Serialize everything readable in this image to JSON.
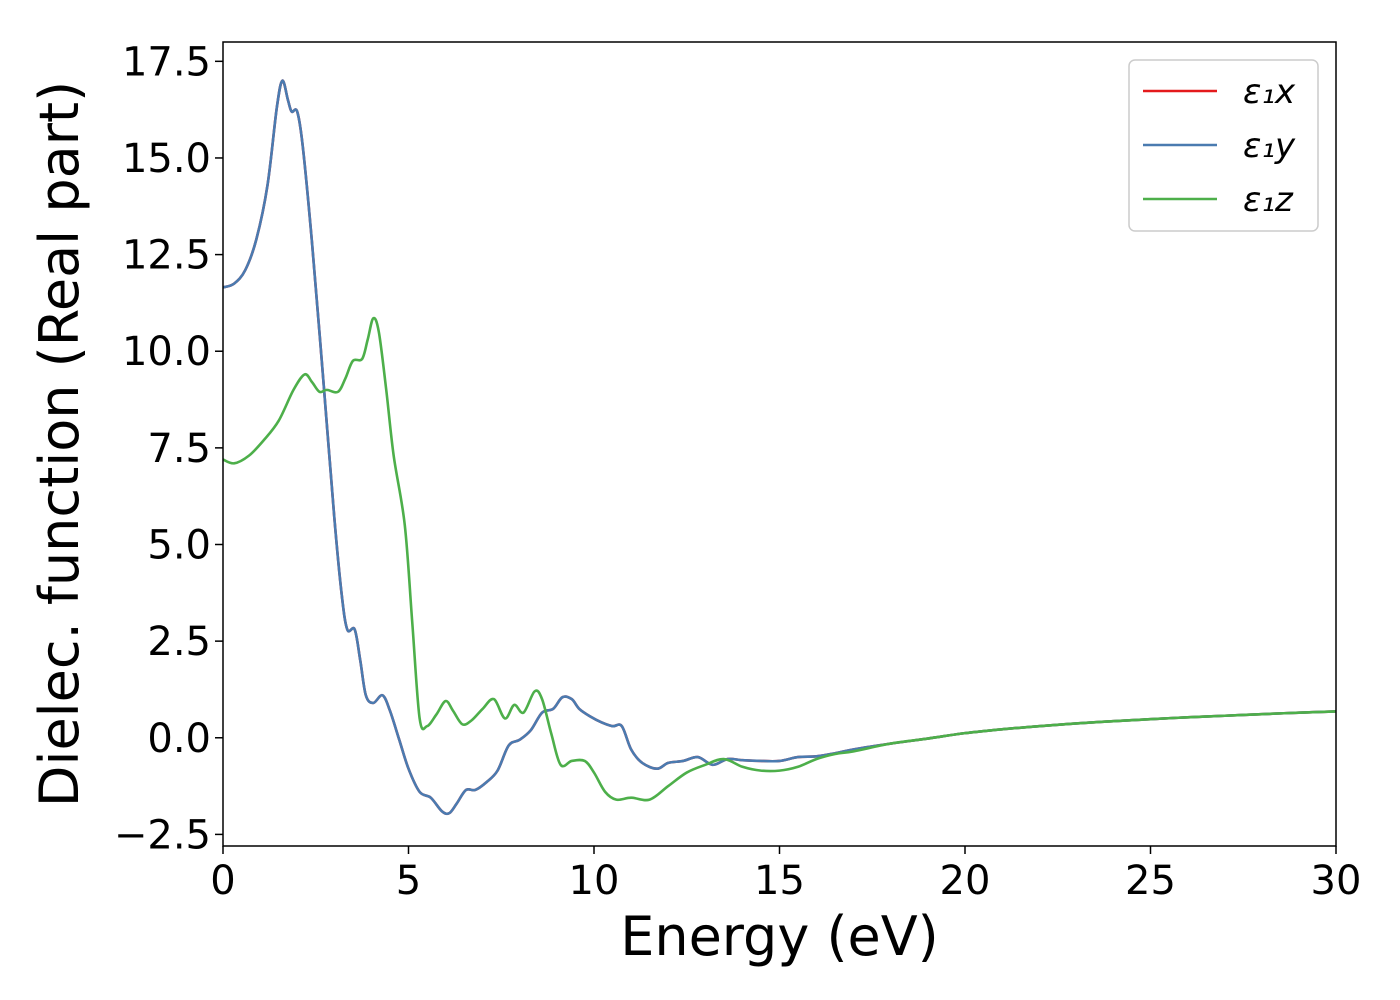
{
  "chart_data": {
    "type": "line",
    "xlabel": "Energy (eV)",
    "ylabel": "Dielec. function (Real part)",
    "xlim": [
      0,
      30
    ],
    "ylim": [
      -2.8,
      18.0
    ],
    "xticks": [
      0,
      5,
      10,
      15,
      20,
      25,
      30
    ],
    "xtick_labels": [
      "0",
      "5",
      "10",
      "15",
      "20",
      "25",
      "30"
    ],
    "yticks": [
      -2.5,
      0.0,
      2.5,
      5.0,
      7.5,
      10.0,
      12.5,
      15.0,
      17.5
    ],
    "ytick_labels": [
      "−2.5",
      "0.0",
      "2.5",
      "5.0",
      "7.5",
      "10.0",
      "12.5",
      "15.0",
      "17.5"
    ],
    "grid": false,
    "legend_position": "top-right",
    "series": [
      {
        "name": "ε₁x",
        "color": "#e41a1c",
        "points": [
          [
            0,
            11.65
          ],
          [
            0.3,
            11.75
          ],
          [
            0.6,
            12.1
          ],
          [
            0.9,
            12.9
          ],
          [
            1.2,
            14.3
          ],
          [
            1.45,
            16.3
          ],
          [
            1.6,
            17.0
          ],
          [
            1.75,
            16.5
          ],
          [
            1.85,
            16.2
          ],
          [
            2.0,
            16.2
          ],
          [
            2.15,
            15.3
          ],
          [
            2.4,
            12.8
          ],
          [
            2.7,
            9.3
          ],
          [
            3.0,
            5.7
          ],
          [
            3.2,
            3.7
          ],
          [
            3.35,
            2.8
          ],
          [
            3.55,
            2.8
          ],
          [
            3.7,
            2.0
          ],
          [
            3.85,
            1.1
          ],
          [
            4.05,
            0.9
          ],
          [
            4.3,
            1.1
          ],
          [
            4.5,
            0.7
          ],
          [
            4.75,
            -0.05
          ],
          [
            5.0,
            -0.8
          ],
          [
            5.3,
            -1.4
          ],
          [
            5.6,
            -1.55
          ],
          [
            5.9,
            -1.9
          ],
          [
            6.1,
            -1.95
          ],
          [
            6.3,
            -1.7
          ],
          [
            6.55,
            -1.35
          ],
          [
            6.8,
            -1.35
          ],
          [
            7.1,
            -1.15
          ],
          [
            7.4,
            -0.85
          ],
          [
            7.7,
            -0.2
          ],
          [
            8.0,
            -0.05
          ],
          [
            8.3,
            0.2
          ],
          [
            8.6,
            0.65
          ],
          [
            8.9,
            0.75
          ],
          [
            9.15,
            1.05
          ],
          [
            9.4,
            1.0
          ],
          [
            9.6,
            0.75
          ],
          [
            9.9,
            0.55
          ],
          [
            10.2,
            0.4
          ],
          [
            10.5,
            0.3
          ],
          [
            10.75,
            0.3
          ],
          [
            11.0,
            -0.3
          ],
          [
            11.3,
            -0.65
          ],
          [
            11.7,
            -0.8
          ],
          [
            12.0,
            -0.65
          ],
          [
            12.4,
            -0.6
          ],
          [
            12.8,
            -0.5
          ],
          [
            13.2,
            -0.7
          ],
          [
            13.6,
            -0.55
          ],
          [
            14.0,
            -0.58
          ],
          [
            14.5,
            -0.6
          ],
          [
            15.0,
            -0.6
          ],
          [
            15.5,
            -0.5
          ],
          [
            16.0,
            -0.48
          ],
          [
            16.5,
            -0.4
          ],
          [
            17.0,
            -0.3
          ],
          [
            18.0,
            -0.15
          ],
          [
            19.0,
            -0.02
          ],
          [
            20.0,
            0.12
          ],
          [
            21.0,
            0.22
          ],
          [
            22.0,
            0.3
          ],
          [
            23.0,
            0.37
          ],
          [
            24.0,
            0.43
          ],
          [
            25.0,
            0.48
          ],
          [
            26.0,
            0.53
          ],
          [
            27.0,
            0.57
          ],
          [
            28.0,
            0.61
          ],
          [
            29.0,
            0.65
          ],
          [
            30.0,
            0.68
          ]
        ]
      },
      {
        "name": "ε₁y",
        "color": "#4a7bb0",
        "points": [
          [
            0,
            11.65
          ],
          [
            0.3,
            11.75
          ],
          [
            0.6,
            12.1
          ],
          [
            0.9,
            12.9
          ],
          [
            1.2,
            14.3
          ],
          [
            1.45,
            16.3
          ],
          [
            1.6,
            17.0
          ],
          [
            1.75,
            16.5
          ],
          [
            1.85,
            16.2
          ],
          [
            2.0,
            16.2
          ],
          [
            2.15,
            15.3
          ],
          [
            2.4,
            12.8
          ],
          [
            2.7,
            9.3
          ],
          [
            3.0,
            5.7
          ],
          [
            3.2,
            3.7
          ],
          [
            3.35,
            2.8
          ],
          [
            3.55,
            2.8
          ],
          [
            3.7,
            2.0
          ],
          [
            3.85,
            1.1
          ],
          [
            4.05,
            0.9
          ],
          [
            4.3,
            1.1
          ],
          [
            4.5,
            0.7
          ],
          [
            4.75,
            -0.05
          ],
          [
            5.0,
            -0.8
          ],
          [
            5.3,
            -1.4
          ],
          [
            5.6,
            -1.55
          ],
          [
            5.9,
            -1.9
          ],
          [
            6.1,
            -1.95
          ],
          [
            6.3,
            -1.7
          ],
          [
            6.55,
            -1.35
          ],
          [
            6.8,
            -1.35
          ],
          [
            7.1,
            -1.15
          ],
          [
            7.4,
            -0.85
          ],
          [
            7.7,
            -0.2
          ],
          [
            8.0,
            -0.05
          ],
          [
            8.3,
            0.2
          ],
          [
            8.6,
            0.65
          ],
          [
            8.9,
            0.75
          ],
          [
            9.15,
            1.05
          ],
          [
            9.4,
            1.0
          ],
          [
            9.6,
            0.75
          ],
          [
            9.9,
            0.55
          ],
          [
            10.2,
            0.4
          ],
          [
            10.5,
            0.3
          ],
          [
            10.75,
            0.3
          ],
          [
            11.0,
            -0.3
          ],
          [
            11.3,
            -0.65
          ],
          [
            11.7,
            -0.8
          ],
          [
            12.0,
            -0.65
          ],
          [
            12.4,
            -0.6
          ],
          [
            12.8,
            -0.5
          ],
          [
            13.2,
            -0.7
          ],
          [
            13.6,
            -0.55
          ],
          [
            14.0,
            -0.58
          ],
          [
            14.5,
            -0.6
          ],
          [
            15.0,
            -0.6
          ],
          [
            15.5,
            -0.5
          ],
          [
            16.0,
            -0.48
          ],
          [
            16.5,
            -0.4
          ],
          [
            17.0,
            -0.3
          ],
          [
            18.0,
            -0.15
          ],
          [
            19.0,
            -0.02
          ],
          [
            20.0,
            0.12
          ],
          [
            21.0,
            0.22
          ],
          [
            22.0,
            0.3
          ],
          [
            23.0,
            0.37
          ],
          [
            24.0,
            0.43
          ],
          [
            25.0,
            0.48
          ],
          [
            26.0,
            0.53
          ],
          [
            27.0,
            0.57
          ],
          [
            28.0,
            0.61
          ],
          [
            29.0,
            0.65
          ],
          [
            30.0,
            0.68
          ]
        ]
      },
      {
        "name": "ε₁z",
        "color": "#4daf4a",
        "points": [
          [
            0,
            7.2
          ],
          [
            0.3,
            7.1
          ],
          [
            0.7,
            7.3
          ],
          [
            1.1,
            7.7
          ],
          [
            1.5,
            8.2
          ],
          [
            1.9,
            9.0
          ],
          [
            2.2,
            9.4
          ],
          [
            2.4,
            9.2
          ],
          [
            2.6,
            8.95
          ],
          [
            2.8,
            9.0
          ],
          [
            3.1,
            8.95
          ],
          [
            3.3,
            9.3
          ],
          [
            3.5,
            9.75
          ],
          [
            3.75,
            9.8
          ],
          [
            3.9,
            10.3
          ],
          [
            4.05,
            10.85
          ],
          [
            4.2,
            10.5
          ],
          [
            4.4,
            9.0
          ],
          [
            4.6,
            7.3
          ],
          [
            4.9,
            5.5
          ],
          [
            5.1,
            3.0
          ],
          [
            5.3,
            0.5
          ],
          [
            5.5,
            0.3
          ],
          [
            5.75,
            0.6
          ],
          [
            6.0,
            0.95
          ],
          [
            6.2,
            0.7
          ],
          [
            6.45,
            0.35
          ],
          [
            6.7,
            0.45
          ],
          [
            7.0,
            0.75
          ],
          [
            7.3,
            1.0
          ],
          [
            7.6,
            0.5
          ],
          [
            7.85,
            0.85
          ],
          [
            8.1,
            0.65
          ],
          [
            8.4,
            1.2
          ],
          [
            8.6,
            1.0
          ],
          [
            8.85,
            0.1
          ],
          [
            9.1,
            -0.7
          ],
          [
            9.4,
            -0.6
          ],
          [
            9.75,
            -0.6
          ],
          [
            10.0,
            -0.9
          ],
          [
            10.3,
            -1.4
          ],
          [
            10.6,
            -1.6
          ],
          [
            11.0,
            -1.55
          ],
          [
            11.5,
            -1.6
          ],
          [
            12.0,
            -1.25
          ],
          [
            12.5,
            -0.9
          ],
          [
            13.0,
            -0.7
          ],
          [
            13.5,
            -0.55
          ],
          [
            14.0,
            -0.75
          ],
          [
            14.5,
            -0.85
          ],
          [
            15.0,
            -0.85
          ],
          [
            15.5,
            -0.75
          ],
          [
            16.0,
            -0.55
          ],
          [
            16.5,
            -0.42
          ],
          [
            17.0,
            -0.35
          ],
          [
            18.0,
            -0.15
          ],
          [
            19.0,
            -0.02
          ],
          [
            20.0,
            0.12
          ],
          [
            21.0,
            0.22
          ],
          [
            22.0,
            0.3
          ],
          [
            23.0,
            0.37
          ],
          [
            24.0,
            0.43
          ],
          [
            25.0,
            0.48
          ],
          [
            26.0,
            0.53
          ],
          [
            27.0,
            0.57
          ],
          [
            28.0,
            0.61
          ],
          [
            29.0,
            0.65
          ],
          [
            30.0,
            0.68
          ]
        ]
      }
    ]
  }
}
